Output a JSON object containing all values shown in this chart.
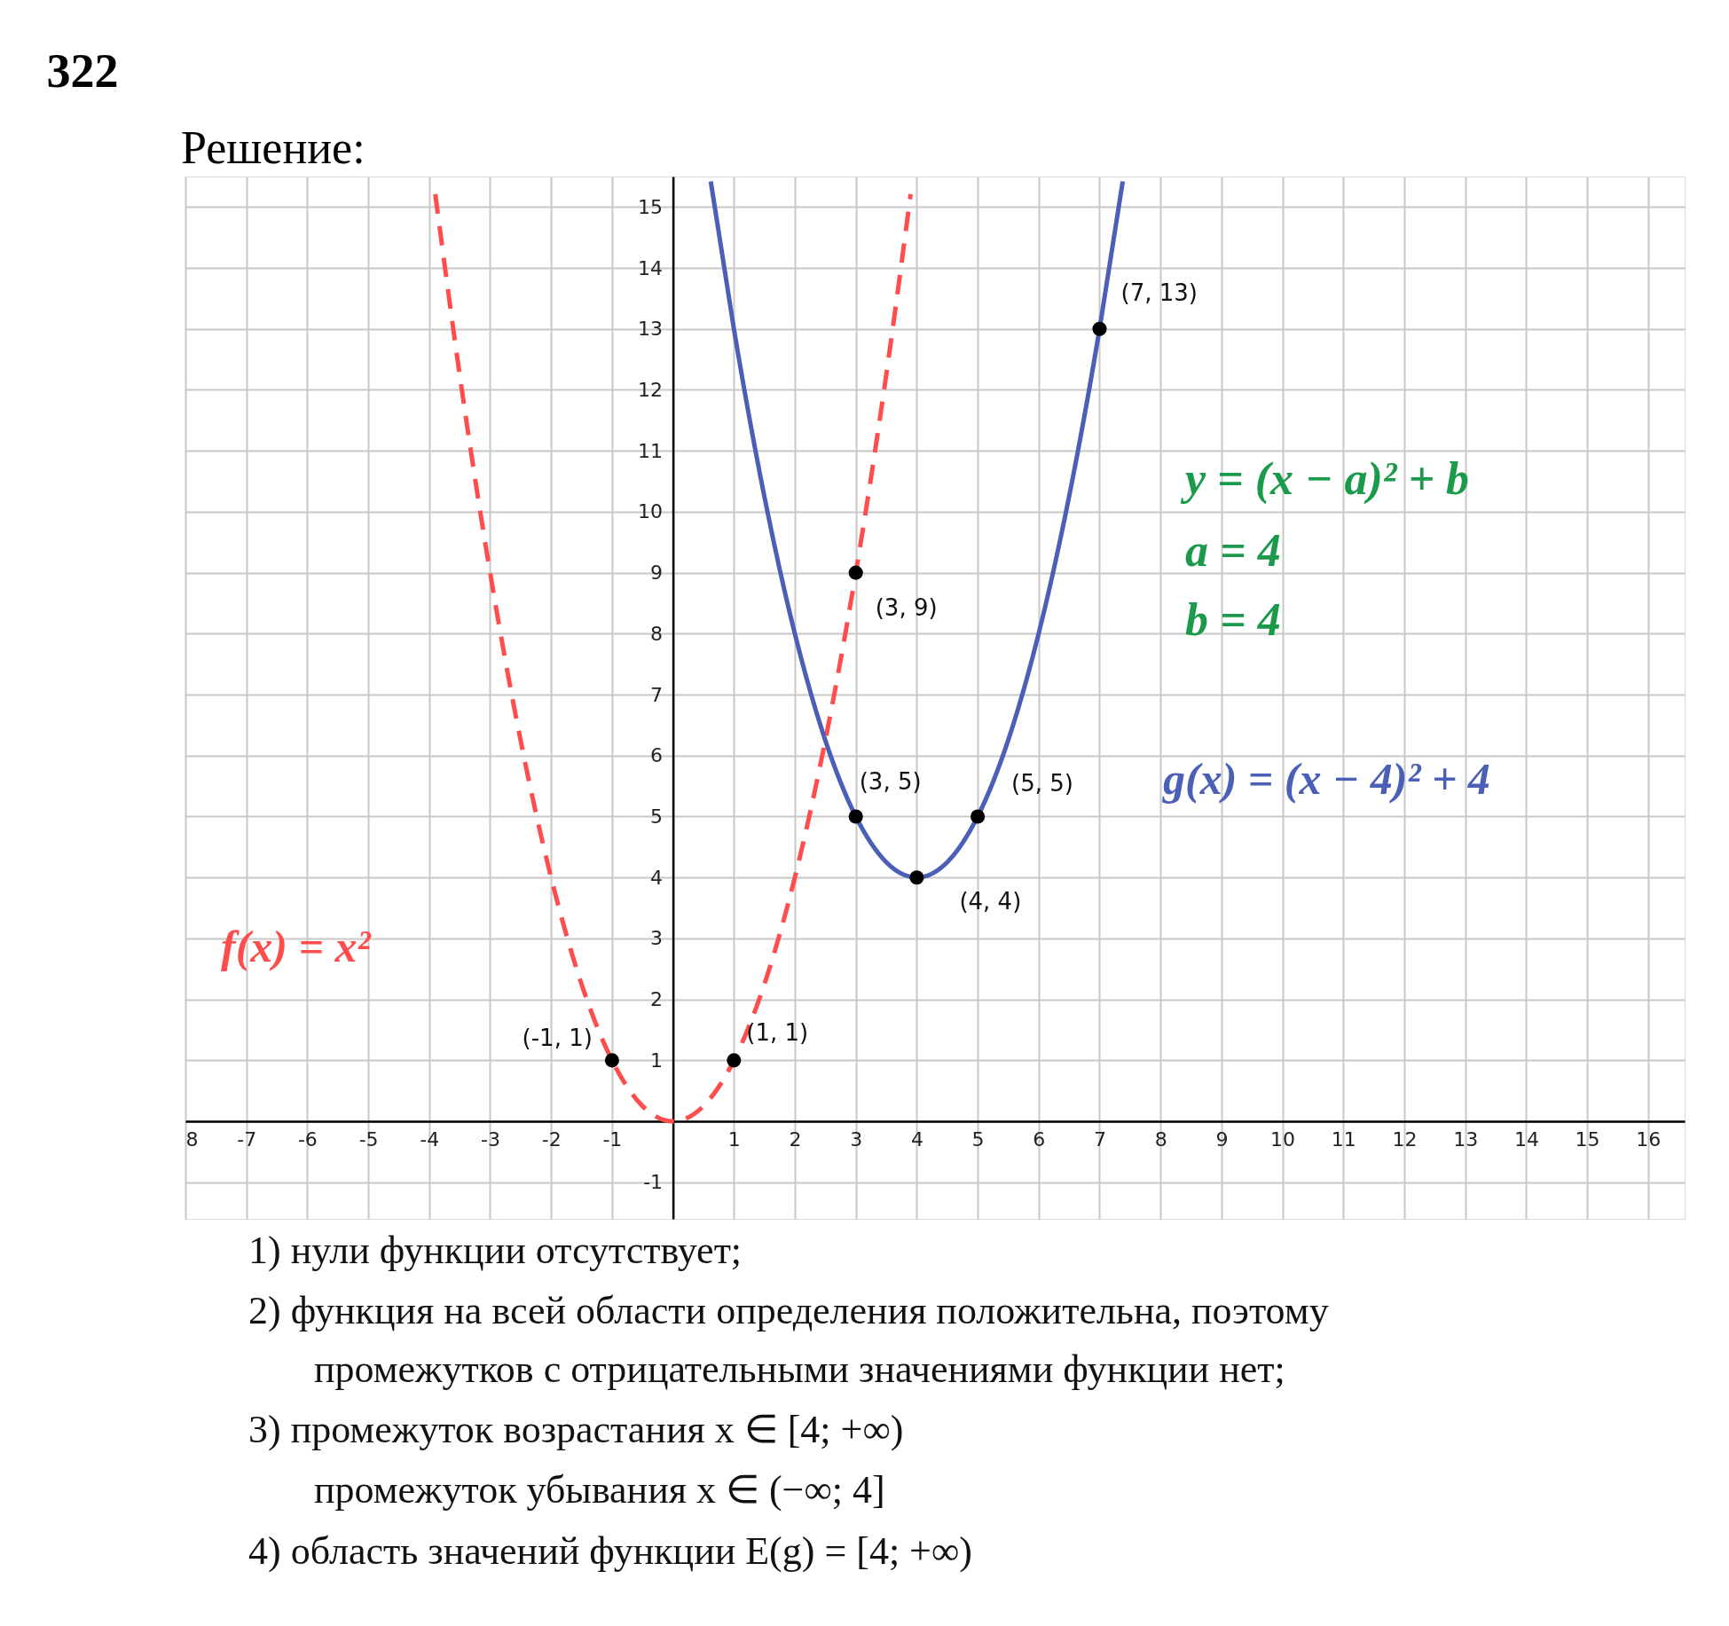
{
  "chart_data": {
    "type": "line",
    "title": "322",
    "subtitle": "Решение:",
    "xlim": [
      -8,
      16.6
    ],
    "ylim": [
      -1.6,
      15.5
    ],
    "xticks": [
      {
        "value": -8,
        "label": "8"
      },
      -7,
      -6,
      -5,
      -4,
      -3,
      -2,
      -1,
      {
        "value": 0,
        "label": null
      },
      1,
      2,
      3,
      4,
      5,
      6,
      7,
      8,
      9,
      10,
      11,
      12,
      13,
      14,
      15,
      16
    ],
    "yticks": [
      -1,
      {
        "value": 0,
        "label": null
      },
      1,
      2,
      3,
      4,
      5,
      6,
      7,
      8,
      9,
      10,
      11,
      12,
      13,
      14,
      15
    ],
    "grid": true,
    "series": [
      {
        "name": "f(x) = x²",
        "color": "#ff4d4d",
        "line_style": "dashed",
        "x": [
          -3.9,
          -3.5,
          -3,
          -2.5,
          -2,
          -1.5,
          -1,
          -0.5,
          0,
          0.5,
          1,
          1.5,
          2,
          2.5,
          3,
          3.5,
          3.9
        ],
        "values": [
          15.21,
          12.25,
          9,
          6.25,
          4,
          2.25,
          1,
          0.25,
          0,
          0.25,
          1,
          2.25,
          4,
          6.25,
          9,
          12.25,
          15.21
        ]
      },
      {
        "name": "g(x) = (x − 4)² + 4",
        "color": "#4a5fb5",
        "line_style": "solid",
        "x": [
          0.62,
          1,
          1.5,
          2,
          2.5,
          3,
          3.5,
          4,
          4.5,
          5,
          5.5,
          6,
          6.5,
          7,
          7.38
        ],
        "values": [
          15.42,
          13,
          10.25,
          8,
          6.25,
          5,
          4.25,
          4,
          4.25,
          5,
          6.25,
          8,
          10.25,
          13,
          15.42
        ]
      },
      {
        "color": "#000000",
        "type": "scatter",
        "marker": "circle",
        "x": [
          -1,
          1,
          3,
          3,
          4,
          5,
          7
        ],
        "values": [
          1,
          1,
          9,
          5,
          4,
          5,
          13
        ]
      }
    ],
    "annotations": [
      {
        "text": "(-1, 1)",
        "x": -1,
        "y": 1
      },
      {
        "text": "(1, 1)",
        "x": 1,
        "y": 1
      },
      {
        "text": "(3, 9)",
        "x": 3,
        "y": 9
      },
      {
        "text": "(3, 5)",
        "x": 3,
        "y": 5
      },
      {
        "text": "(4, 4)",
        "x": 4,
        "y": 4
      },
      {
        "text": "(5, 5)",
        "x": 5,
        "y": 5
      },
      {
        "text": "(7, 13)",
        "x": 7,
        "y": 13
      },
      "y = (x − a)² + b",
      "a = 4",
      "b = 4",
      "1)  нули функции отсутствует;",
      "2)  функция на всей области определения положительна, поэтому",
      "промежутков с отрицательными значениями функции нет;",
      "3)  промежуток возрастания  x ∈ [4; +∞)",
      "промежуток убывания  x ∈ (−∞; 4]",
      "4)  область значений функции E(g) = [4; +∞)"
    ]
  }
}
